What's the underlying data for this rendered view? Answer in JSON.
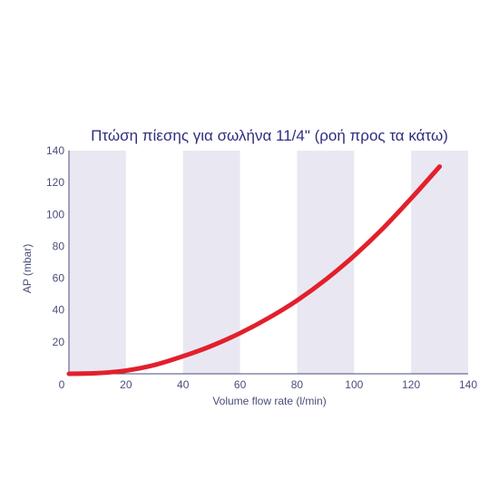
{
  "chart_data": {
    "type": "line",
    "title": "Πτώση πίεσης για σωλήνα 11/4\" (ροή προς τα κάτω)",
    "xlabel": "Volume flow rate (l/min)",
    "ylabel": "AP (mbar)",
    "xlim": [
      0,
      140
    ],
    "ylim": [
      0,
      140
    ],
    "xticks": [
      0,
      20,
      40,
      60,
      80,
      100,
      120,
      140
    ],
    "yticks": [
      0,
      20,
      40,
      60,
      80,
      100,
      120,
      140
    ],
    "x_tick_labels": [
      "0",
      "20",
      "40",
      "60",
      "80",
      "100",
      "120",
      "140"
    ],
    "y_tick_labels": [
      "0",
      "20",
      "40",
      "60",
      "80",
      "100",
      "120",
      "140"
    ],
    "grid": false,
    "banded_background": true,
    "band_intervals": [
      [
        0,
        20
      ],
      [
        40,
        60
      ],
      [
        80,
        100
      ],
      [
        120,
        140
      ]
    ],
    "series": [
      {
        "x": [
          0,
          10,
          20,
          30,
          40,
          50,
          60,
          70,
          80,
          90,
          100,
          110,
          120,
          130
        ],
        "y": [
          0,
          0.4,
          2.0,
          5.5,
          11.0,
          17.5,
          25.5,
          35.0,
          46.0,
          59.0,
          74.0,
          91.0,
          110.0,
          130.0
        ]
      }
    ]
  },
  "colors": {
    "title": "#2e2f7f",
    "band": "#e9e8f2",
    "axis": "#4a4d7a",
    "tick_text": "#4a4d7a",
    "line": "#e2202c"
  }
}
